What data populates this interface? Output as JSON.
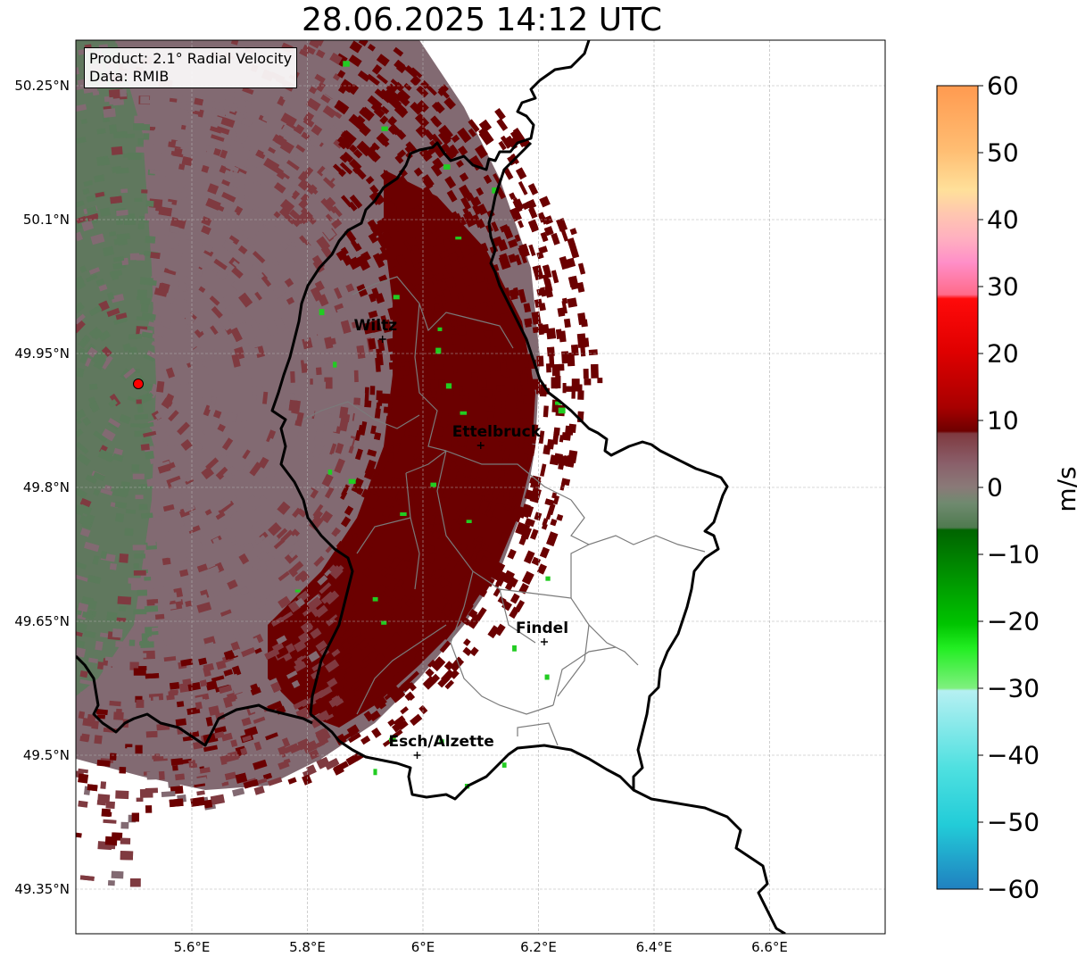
{
  "title": "28.06.2025 14:12 UTC",
  "info": {
    "product": "Product: 2.1° Radial Velocity",
    "data": "Data: RMIB"
  },
  "axes": {
    "lat_labels": [
      "50.25°N",
      "50.1°N",
      "49.95°N",
      "49.8°N",
      "49.65°N",
      "49.5°N",
      "49.35°N"
    ],
    "lon_labels": [
      "5.6°E",
      "5.8°E",
      "6°E",
      "6.2°E",
      "6.4°E",
      "6.6°E"
    ]
  },
  "colorbar": {
    "unit": "m/s",
    "ticks": [
      "60",
      "50",
      "40",
      "30",
      "20",
      "10",
      "0",
      "−10",
      "−20",
      "−30",
      "−40",
      "−50",
      "−60"
    ],
    "range": [
      -60,
      60
    ]
  },
  "cities": [
    {
      "name": "Wiltz",
      "lon": 5.93,
      "lat": 49.966
    },
    {
      "name": "Ettelbruck",
      "lon": 6.1,
      "lat": 49.847
    },
    {
      "name": "Findel",
      "lon": 6.21,
      "lat": 49.627
    },
    {
      "name": "Esch/Alzette",
      "lon": 5.99,
      "lat": 49.5
    }
  ],
  "radar_site": {
    "lon": 5.505,
    "lat": 49.915
  },
  "colors": {
    "strong_inbound": "#6b0000",
    "mid_outbound": "#7f3a40",
    "neutral_mauve": "#826a72",
    "near_zero_green": "#5a7a5a",
    "green_speckle": "#22cc22",
    "radar_site": "#ff0000"
  }
}
